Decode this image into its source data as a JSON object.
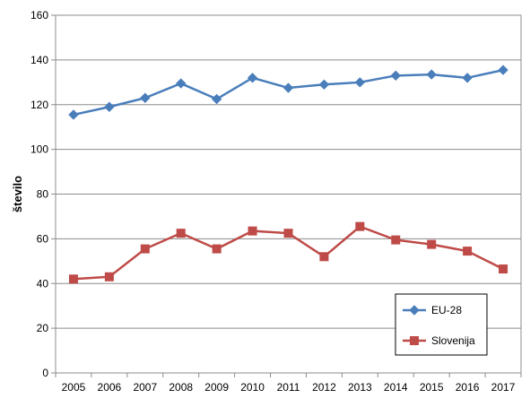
{
  "chart_data": {
    "type": "line",
    "title": "",
    "xlabel": "",
    "ylabel": "število",
    "ylim": [
      0,
      160
    ],
    "yticks": [
      "0",
      "20",
      "40",
      "60",
      "80",
      "100",
      "120",
      "140",
      "160"
    ],
    "categories": [
      "2005",
      "2006",
      "2007",
      "2008",
      "2009",
      "2010",
      "2011",
      "2012",
      "2013",
      "2014",
      "2015",
      "2016",
      "2017"
    ],
    "grid": true,
    "legend_position": "bottom-right",
    "series": [
      {
        "name": "EU-28",
        "color": "#4a7ebb",
        "marker": "diamond",
        "values": [
          115.5,
          119,
          123,
          129.5,
          122.5,
          132,
          127.5,
          129,
          130,
          133,
          133.5,
          132,
          135.5
        ]
      },
      {
        "name": "Slovenija",
        "color": "#be4b48",
        "marker": "square",
        "values": [
          42,
          43,
          55.5,
          62.5,
          55.5,
          63.5,
          62.5,
          52,
          65.5,
          59.5,
          57.5,
          54.5,
          46.5
        ]
      }
    ]
  }
}
